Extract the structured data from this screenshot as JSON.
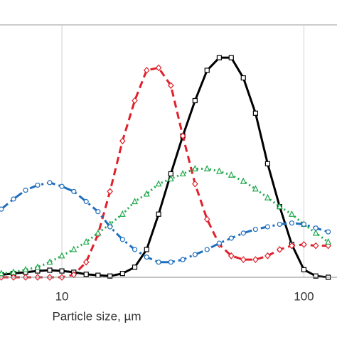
{
  "chart_data": {
    "type": "line",
    "xlabel": "Particle size, µm",
    "xscale": "log",
    "xlim": [
      5.55,
      137
    ],
    "xticks": [
      10,
      100
    ],
    "xgrid": true,
    "ylim": [
      0,
      10
    ],
    "x": [
      5.62,
      6.31,
      7.08,
      7.94,
      8.91,
      10,
      11.2,
      12.6,
      14.1,
      15.8,
      17.8,
      20,
      22.4,
      25.1,
      28.2,
      31.6,
      35.5,
      39.8,
      44.7,
      50.1,
      56.2,
      63.1,
      70.8,
      79.4,
      89.1,
      100,
      112,
      126
    ],
    "series": [
      {
        "color": "#000000",
        "dash": "solid",
        "marker": "square",
        "values": [
          0.1,
          0.15,
          0.2,
          0.25,
          0.28,
          0.25,
          0.2,
          0.12,
          0.08,
          0.05,
          0.15,
          0.4,
          1.1,
          2.5,
          4.1,
          5.6,
          7.0,
          8.2,
          8.7,
          8.7,
          7.9,
          6.5,
          4.5,
          2.8,
          1.3,
          0.3,
          0.05,
          0
        ]
      },
      {
        "color": "#e0202a",
        "dash": "dashed",
        "marker": "diamond",
        "values": [
          0,
          0,
          0,
          0,
          0,
          0,
          0.1,
          0.6,
          1.7,
          3.4,
          5.4,
          7.0,
          8.2,
          8.3,
          7.6,
          5.6,
          3.7,
          2.3,
          1.3,
          0.85,
          0.7,
          0.7,
          0.85,
          1.1,
          1.25,
          1.3,
          1.25,
          1.25
        ]
      },
      {
        "color": "#1fa84a",
        "dash": "dotted",
        "marker": "triangle",
        "values": [
          0.15,
          0.2,
          0.3,
          0.4,
          0.6,
          0.85,
          1.1,
          1.4,
          1.75,
          2.1,
          2.5,
          3.0,
          3.3,
          3.7,
          3.9,
          4.1,
          4.3,
          4.3,
          4.2,
          4.05,
          3.8,
          3.5,
          3.15,
          2.8,
          2.5,
          2.1,
          1.75,
          1.4
        ]
      },
      {
        "color": "#1f6fbf",
        "dash": "dashdot",
        "marker": "circle",
        "values": [
          2.7,
          3.1,
          3.45,
          3.65,
          3.75,
          3.6,
          3.4,
          3.0,
          2.6,
          2.0,
          1.5,
          1.1,
          0.8,
          0.6,
          0.6,
          0.7,
          0.9,
          1.1,
          1.35,
          1.55,
          1.75,
          1.9,
          2.0,
          2.1,
          2.15,
          2.1,
          1.95,
          1.8
        ]
      }
    ]
  }
}
